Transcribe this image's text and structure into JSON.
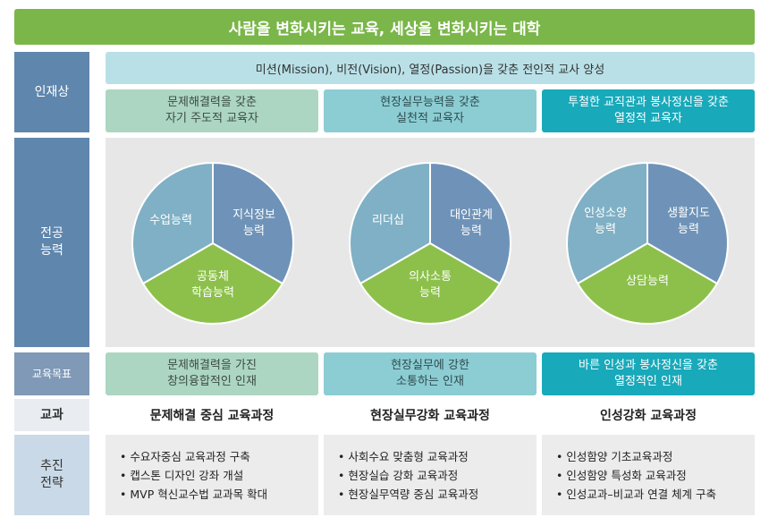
{
  "banner": "사람을 변화시키는 교육, 세상을 변화시키는 대학",
  "rows": {
    "talent": "인재상",
    "competency_line1": "전공",
    "competency_line2": "능력",
    "goal": "교육목표",
    "subject": "교과",
    "strategy_line1": "추진",
    "strategy_line2": "전략"
  },
  "mission": "미션(Mission), 비전(Vision), 열정(Passion)을 갖춘 전인적 교사 양성",
  "talents": [
    {
      "line1": "문제해결력을 갖춘",
      "line2": "자기 주도적 교육자"
    },
    {
      "line1": "현장실무능력을 갖춘",
      "line2": "실천적 교육자"
    },
    {
      "line1": "투철한 교직관과 봉사정신을 갖춘",
      "line2": "열정적 교육자"
    }
  ],
  "pies": [
    {
      "left": {
        "line1": "수업능력",
        "line2": ""
      },
      "right": {
        "line1": "지식정보",
        "line2": "능력"
      },
      "bottom": {
        "line1": "공동체",
        "line2": "학습능력"
      }
    },
    {
      "left": {
        "line1": "리더십",
        "line2": ""
      },
      "right": {
        "line1": "대인관계",
        "line2": "능력"
      },
      "bottom": {
        "line1": "의사소통",
        "line2": "능력"
      }
    },
    {
      "left": {
        "line1": "인성소양",
        "line2": "능력"
      },
      "right": {
        "line1": "생활지도",
        "line2": "능력"
      },
      "bottom": {
        "line1": "상담능력",
        "line2": ""
      }
    }
  ],
  "goals": [
    {
      "line1": "문제해결력을 가진",
      "line2": "창의융합적인 인재"
    },
    {
      "line1": "현장실무에 강한",
      "line2": "소통하는 인재"
    },
    {
      "line1": "바른 인성과 봉사정신을 갖춘",
      "line2": "열정적인 인재"
    }
  ],
  "courses": [
    "문제해결 중심 교육과정",
    "현장실무강화 교육과정",
    "인성강화 교육과정"
  ],
  "strategies": [
    [
      "수요자중심 교육과정 구축",
      "캡스톤 디자인 강좌 개설",
      "MVP 혁신교수법 교과목 확대"
    ],
    [
      "사회수요 맞춤형 교육과정",
      "현장실습 강화 교육과정",
      "현장실무역량 중심 교육과정"
    ],
    [
      "인성함양 기초교육과정",
      "인성함양 특성화 교육과정",
      "인성교과–비교과 연결 체계 구축"
    ]
  ],
  "colors": {
    "left": "#7fb0c5",
    "right": "#6f93b8",
    "bottom": "#8cc04b"
  }
}
